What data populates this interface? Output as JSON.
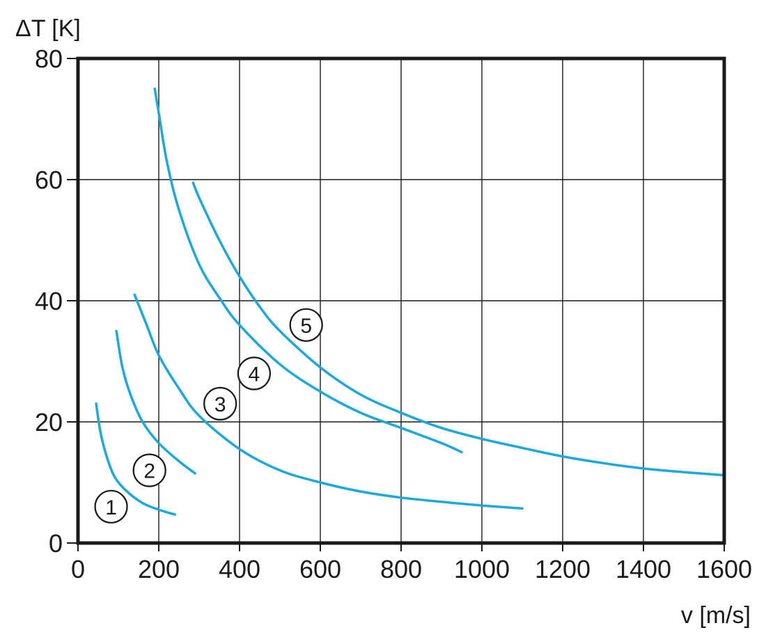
{
  "chart_data": {
    "type": "line",
    "title": "",
    "xlabel": "v [m/s]",
    "ylabel": "ΔT [K]",
    "xlim": [
      0,
      1600
    ],
    "ylim": [
      0,
      80
    ],
    "xticks": [
      0,
      200,
      400,
      600,
      800,
      1000,
      1200,
      1400,
      1600
    ],
    "yticks": [
      0,
      20,
      40,
      60,
      80
    ],
    "x_tick_labels": [
      "0",
      "200",
      "400",
      "600",
      "800",
      "1000",
      "1200",
      "1400",
      "1600"
    ],
    "y_tick_labels": [
      "0",
      "20",
      "40",
      "60",
      "80"
    ],
    "grid": true,
    "line_color": "#1aa9df",
    "series": [
      {
        "name": "1",
        "x": [
          45,
          55,
          70,
          90,
          120,
          160,
          200,
          240
        ],
        "y": [
          23,
          18.5,
          14.5,
          11,
          8.6,
          6.6,
          5.5,
          4.7
        ]
      },
      {
        "name": "2",
        "x": [
          95,
          110,
          130,
          160,
          200,
          250,
          290
        ],
        "y": [
          35,
          29,
          24.5,
          20,
          16.5,
          13.5,
          11.5
        ]
      },
      {
        "name": "3",
        "x": [
          140,
          170,
          200,
          250,
          300,
          400,
          500,
          600,
          700,
          800,
          900,
          1000,
          1100
        ],
        "y": [
          41,
          36,
          31,
          25.5,
          21,
          15.5,
          12,
          10,
          8.5,
          7.5,
          6.8,
          6.2,
          5.7
        ]
      },
      {
        "name": "4",
        "x": [
          190,
          200,
          220,
          250,
          300,
          350,
          400,
          500,
          600,
          700,
          800,
          900,
          950
        ],
        "y": [
          75,
          71,
          63,
          55,
          46,
          40.5,
          36,
          29.5,
          25,
          21.5,
          19,
          16.5,
          15
        ]
      },
      {
        "name": "5",
        "x": [
          285,
          300,
          350,
          400,
          450,
          500,
          600,
          700,
          800,
          900,
          1000,
          1100,
          1200,
          1300,
          1400,
          1500,
          1600
        ],
        "y": [
          59.5,
          57,
          50,
          44,
          39,
          35,
          29,
          24.5,
          21.5,
          19,
          17.2,
          15.7,
          14.3,
          13.2,
          12.3,
          11.7,
          11.2
        ]
      }
    ],
    "curve_labels": [
      {
        "text": "1",
        "x": 82,
        "y": 6
      },
      {
        "text": "2",
        "x": 177,
        "y": 12
      },
      {
        "text": "3",
        "x": 352,
        "y": 23
      },
      {
        "text": "4",
        "x": 436,
        "y": 28
      },
      {
        "text": "5",
        "x": 565,
        "y": 36
      }
    ]
  }
}
